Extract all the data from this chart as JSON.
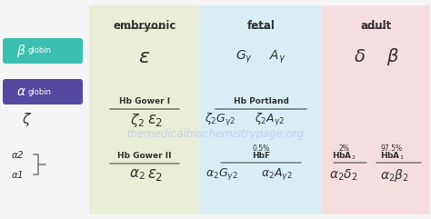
{
  "bg_color": "#f5f5f5",
  "embryonic_color": "#e8eed8",
  "fetal_color": "#d8eef4",
  "adult_color": "#f5dde0",
  "beta_globin_color": "#3bbfb0",
  "alpha_globin_color": "#5548a0",
  "watermark_color": "#c0cce8",
  "text_color": "#333333",
  "title_embryonic": "embryonic",
  "title_fetal": "fetal",
  "title_adult": "adult",
  "watermark": "themedicalbiochemistrypage.org"
}
